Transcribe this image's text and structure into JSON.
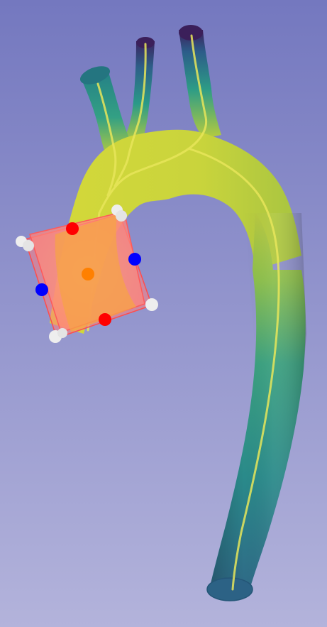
{
  "viewer": {
    "background_top": "#7478bf",
    "background_bottom": "#b3b3db"
  },
  "model": {
    "type": "aorta-vessel-surface",
    "colormap": [
      "#3c1f5a",
      "#2b6f8a",
      "#2aa28a",
      "#6fbf5b",
      "#d4d83a"
    ],
    "centerline_color": "#e8e65a"
  },
  "roi_box": {
    "fill_color": "#ff7d7d",
    "edge_color": "#ff4d4d",
    "handles": {
      "center_color": "#ff8000",
      "axis_a_color": "#ff0000",
      "axis_b_color": "#0000ff",
      "corner_color": "#eeeeee"
    }
  }
}
